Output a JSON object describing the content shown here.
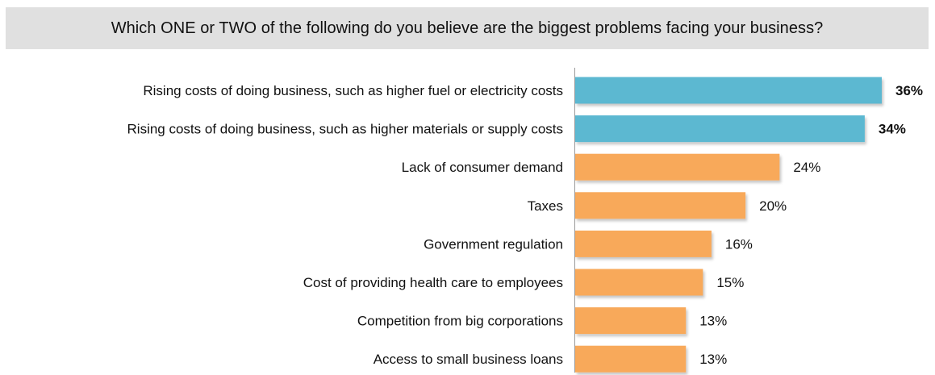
{
  "chart_data": {
    "type": "bar",
    "orientation": "horizontal",
    "title": "Which ONE or TWO of the following do you believe are the biggest problems facing your business?",
    "categories": [
      "Rising costs of doing business, such as higher fuel or electricity costs",
      "Rising costs of doing business, such as higher materials or supply costs",
      "Lack of consumer demand",
      "Taxes",
      "Government regulation",
      "Cost of providing health care to employees",
      "Competition from big corporations",
      "Access to small business loans"
    ],
    "values": [
      36,
      34,
      24,
      20,
      16,
      15,
      13,
      13
    ],
    "value_labels": [
      "36%",
      "34%",
      "24%",
      "20%",
      "16%",
      "15%",
      "13%",
      "13%"
    ],
    "highlighted": [
      true,
      true,
      false,
      false,
      false,
      false,
      false,
      false
    ],
    "xlim": [
      0,
      36
    ],
    "grid": false,
    "legend": "none",
    "colors": {
      "highlight": "#5bb8d1",
      "default": "#f8a95a",
      "title_background": "#e0e0e0",
      "axis": "#999999"
    }
  }
}
